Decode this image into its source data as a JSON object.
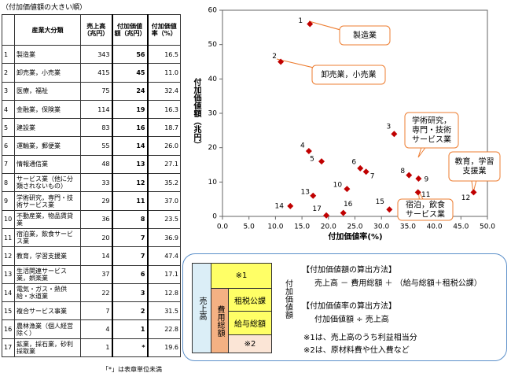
{
  "table": {
    "caption": "（付加価値額の大きい順）",
    "header": [
      "",
      "産業大分類",
      "売上高（兆円）",
      "付加価値額（兆円）",
      "付加価値率（%）"
    ],
    "rows": [
      [
        "1",
        "製造業",
        "343",
        "56",
        "16.5"
      ],
      [
        "2",
        "卸売業，小売業",
        "415",
        "45",
        "11.0"
      ],
      [
        "3",
        "医療，福祉",
        "75",
        "24",
        "32.4"
      ],
      [
        "4",
        "金融業，保険業",
        "114",
        "19",
        "16.3"
      ],
      [
        "5",
        "建設業",
        "83",
        "16",
        "18.7"
      ],
      [
        "6",
        "運輸業，郵便業",
        "55",
        "14",
        "26.0"
      ],
      [
        "7",
        "情報通信業",
        "48",
        "13",
        "27.1"
      ],
      [
        "8",
        "サービス業（他に分類されないもの）",
        "33",
        "12",
        "35.2"
      ],
      [
        "9",
        "学術研究，専門・技術サービス業",
        "29",
        "11",
        "37.0"
      ],
      [
        "10",
        "不動産業，物品賃貸業",
        "36",
        "8",
        "23.5"
      ],
      [
        "11",
        "宿泊業，飲食サービス業",
        "20",
        "7",
        "36.9"
      ],
      [
        "12",
        "教育，学習支援業",
        "14",
        "7",
        "47.4"
      ],
      [
        "13",
        "生活関連サービス業，娯楽業",
        "37",
        "6",
        "17.1"
      ],
      [
        "14",
        "電気・ガス・熱供給・水道業",
        "22",
        "3",
        "12.8"
      ],
      [
        "15",
        "複合サービス事業",
        "7",
        "2",
        "31.5"
      ],
      [
        "16",
        "農林漁業（個人経営除く）",
        "4",
        "1",
        "22.8"
      ],
      [
        "17",
        "鉱業，採石業，砂利採取業",
        "1",
        "*",
        "19.6"
      ]
    ],
    "footnote": "「*」は表章単位未満"
  },
  "chart_data": {
    "type": "scatter",
    "x_label": "付加価値率(%)",
    "y_label": "付加価値額（兆円）",
    "color": "#c00000",
    "labels": [
      "1",
      "2",
      "3",
      "4",
      "5",
      "6",
      "7",
      "8",
      "9",
      "10",
      "11",
      "12",
      "13",
      "14",
      "15",
      "16",
      "17"
    ],
    "x": [
      16.5,
      11.0,
      32.4,
      16.3,
      18.7,
      26.0,
      27.1,
      35.2,
      37.0,
      23.5,
      36.9,
      47.4,
      17.1,
      12.8,
      31.5,
      22.8,
      19.6
    ],
    "y": [
      56,
      45,
      24,
      19,
      16,
      14,
      13,
      12,
      11,
      8,
      7,
      7,
      6,
      3,
      2,
      1,
      0.3
    ],
    "xlim": [
      0,
      50
    ],
    "ylim": [
      0,
      60
    ],
    "xticks": [
      {
        "value": 0,
        "label": "0.0"
      },
      {
        "value": 5,
        "label": "5.0"
      },
      {
        "value": 10,
        "label": "10.0"
      },
      {
        "value": 15,
        "label": "15.0"
      },
      {
        "value": 20,
        "label": "20.0"
      },
      {
        "value": 25,
        "label": "25.0"
      },
      {
        "value": 30,
        "label": "30.0"
      },
      {
        "value": 35,
        "label": "35.0"
      },
      {
        "value": 40,
        "label": "40.0"
      },
      {
        "value": 45,
        "label": "45.0"
      },
      {
        "value": 50,
        "label": "50.0"
      }
    ],
    "yticks": [
      0,
      10,
      20,
      30,
      40,
      50,
      60
    ],
    "grid": false,
    "annotations": [
      [
        "製造業"
      ],
      [
        "卸売業，小売業"
      ],
      [
        "学術研究，",
        "専門・技術",
        "サービス業"
      ],
      [
        "教育，学習",
        "支援業"
      ],
      [
        "宿泊，飲食",
        "サービス業"
      ]
    ]
  },
  "diagram": {
    "sales": "売上高",
    "note1_mark": "※1",
    "cost_total": "費用総額",
    "tax": "租税公課",
    "wages": "給与総額",
    "note2_mark": "※2",
    "value_added": "付加価値額",
    "method1_title": "【付加価値額の算出方法】",
    "method1_formula": "売上高 － 費用総額 ＋ （給与総額＋租税公課）",
    "method2_title": "【付加価値率の算出方法】",
    "method2_formula": "付加価値額 ÷ 売上高",
    "note1": "※1は、売上高のうち利益相当分",
    "note2": "※2は、原材料費や仕入費など"
  }
}
